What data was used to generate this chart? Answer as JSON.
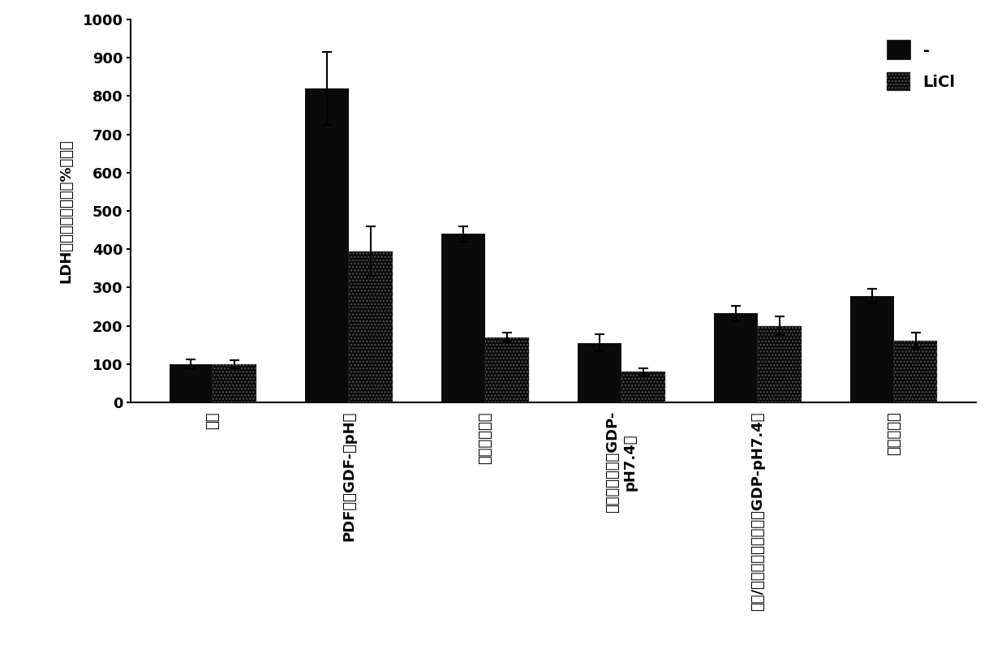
{
  "categories": [
    "对照",
    "PDF（高GDF-低pH）",
    "艾考糊精基的",
    "乳酸缓冲的（低GDP-\npH7.4）",
    "乳酸/碳酸氮盐缓冲的（低GDP-pH7.4）",
    "氨基酸基的"
  ],
  "values_control": [
    100,
    820,
    440,
    155,
    232,
    278
  ],
  "values_licl": [
    100,
    395,
    170,
    80,
    200,
    162
  ],
  "error_control": [
    12,
    95,
    20,
    22,
    20,
    18
  ],
  "error_licl": [
    10,
    65,
    12,
    10,
    25,
    20
  ],
  "bar_color_control": "#0a0a0a",
  "bar_color_licl": "#0a0a0a",
  "ylabel": "LDH释放（相对对照的%倍数）",
  "ylim": [
    0,
    1000
  ],
  "yticks": [
    0,
    100,
    200,
    300,
    400,
    500,
    600,
    700,
    800,
    900,
    1000
  ],
  "legend_labels": [
    "-",
    "LiCl"
  ],
  "bar_width": 0.32,
  "figsize": [
    12.4,
    8.0
  ],
  "dpi": 100,
  "background_color": "#ffffff"
}
